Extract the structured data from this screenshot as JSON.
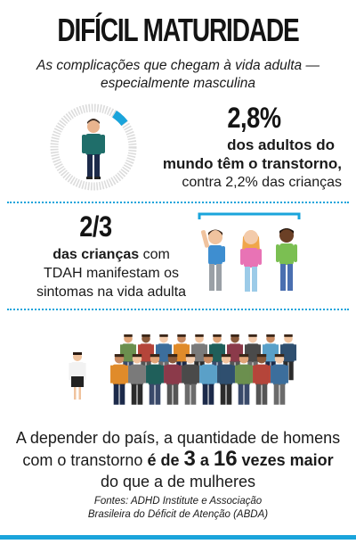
{
  "header": {
    "title": "DIFÍCIL MATURIDADE",
    "subtitle_line1": "As complicações que chegam à vida adulta —",
    "subtitle_line2": "especialmente masculina"
  },
  "stat1": {
    "value": "2,8%",
    "line1": "dos adultos do",
    "line2": "mundo têm o transtorno,",
    "line3": "contra 2,2% das crianças",
    "ring_fraction": 0.028
  },
  "stat2": {
    "value": "2/3",
    "line1_bold": "das crianças",
    "line1_rest": " com",
    "line2": "TDAH manifestam os",
    "line3": "sintomas na vida adulta"
  },
  "stat3": {
    "line1": "A depender do país, a quantidade de homens",
    "line2_pre": "com o transtorno ",
    "line2_bold1": "é de ",
    "num1": "3",
    "mid": " a ",
    "num2": "16",
    "line2_bold2": " vezes maior",
    "line3": "do que a de mulheres"
  },
  "sources": {
    "line1": "Fontes: ADHD Institute e Associação",
    "line2": "Brasileira do Déficit de Atenção (ABDA)"
  },
  "colors": {
    "accent": "#1aa4db",
    "ring": "#dcdcdc"
  }
}
